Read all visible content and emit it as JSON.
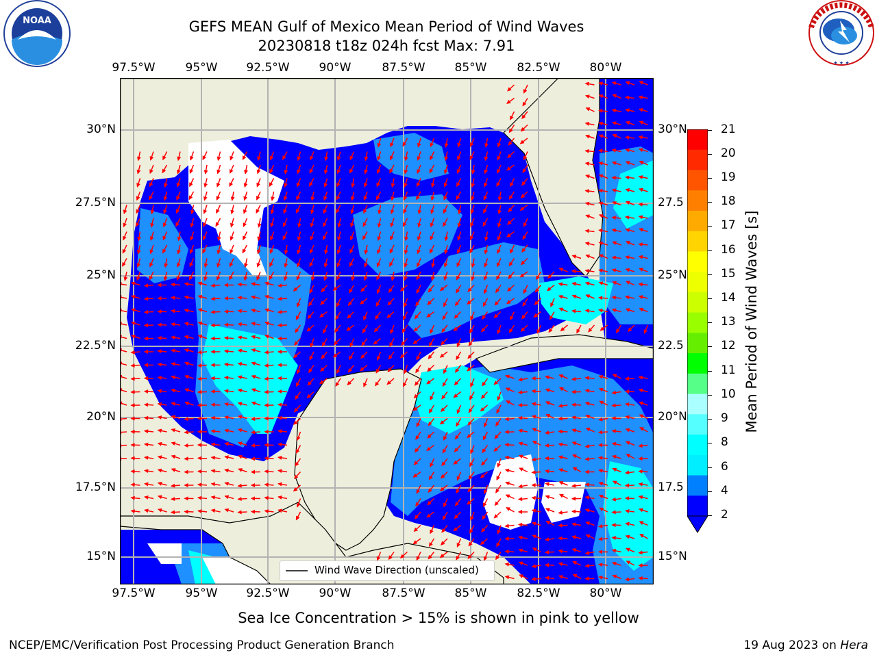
{
  "header": {
    "title": "GEFS MEAN Gulf of Mexico Mean Period of Wind Waves",
    "subtitle": "20230818 t18z 024h fcst   Max: 7.91"
  },
  "logos": {
    "left": {
      "name": "NOAA",
      "ring_text": "NATIONAL OCEANIC AND ATMOSPHERIC ADMINISTRATION · U.S. DEPARTMENT OF COMMERCE"
    },
    "right": {
      "name": "NATIONAL WEATHER SERVICE"
    }
  },
  "map": {
    "lon_ticks": [
      "97.5°W",
      "95°W",
      "92.5°W",
      "90°W",
      "87.5°W",
      "85°W",
      "82.5°W",
      "80°W"
    ],
    "lat_ticks_left": [
      "30°N",
      "27.5°N",
      "25°N",
      "22.5°N",
      "20°N",
      "17.5°N",
      "15°N"
    ],
    "lat_ticks_right": [
      "30°N",
      "27.5",
      "25°N",
      "22.5",
      "20°N",
      "17.5",
      "15°N"
    ],
    "legend_label": "Wind Wave Direction (unscaled)",
    "colors": {
      "land": "#eeeedc",
      "grid": "#b3b3b3",
      "arrow": "#ff0000"
    },
    "fill_levels": [
      {
        "range": "2-4",
        "color": "#0000ff"
      },
      {
        "range": "4-6",
        "color": "#1e90ff"
      },
      {
        "range": "6-8",
        "color": "#00ffff"
      }
    ]
  },
  "colorbar": {
    "label": "Mean Period of Wind Waves [s]",
    "ticks": [
      "21",
      "20",
      "19",
      "18",
      "17",
      "16",
      "15",
      "14",
      "13",
      "12",
      "11",
      "10",
      "9",
      "8",
      "6",
      "4",
      "2"
    ],
    "colors": [
      "#ff0000",
      "#ff2a00",
      "#ff5500",
      "#ff8000",
      "#ffaa00",
      "#ffd400",
      "#ffff00",
      "#eeff00",
      "#ccff00",
      "#99ff00",
      "#66ee00",
      "#00ff00",
      "#55ff88",
      "#aaffff",
      "#55ffff",
      "#00ffff",
      "#00eeff",
      "#0080ff",
      "#0000ff"
    ]
  },
  "caption": "Sea Ice Concentration > 15% is shown in pink to yellow",
  "footer": {
    "left": "NCEP/EMC/Verification Post Processing Product Generation Branch",
    "right_date": "19 Aug 2023 on ",
    "right_host": "Hera"
  }
}
